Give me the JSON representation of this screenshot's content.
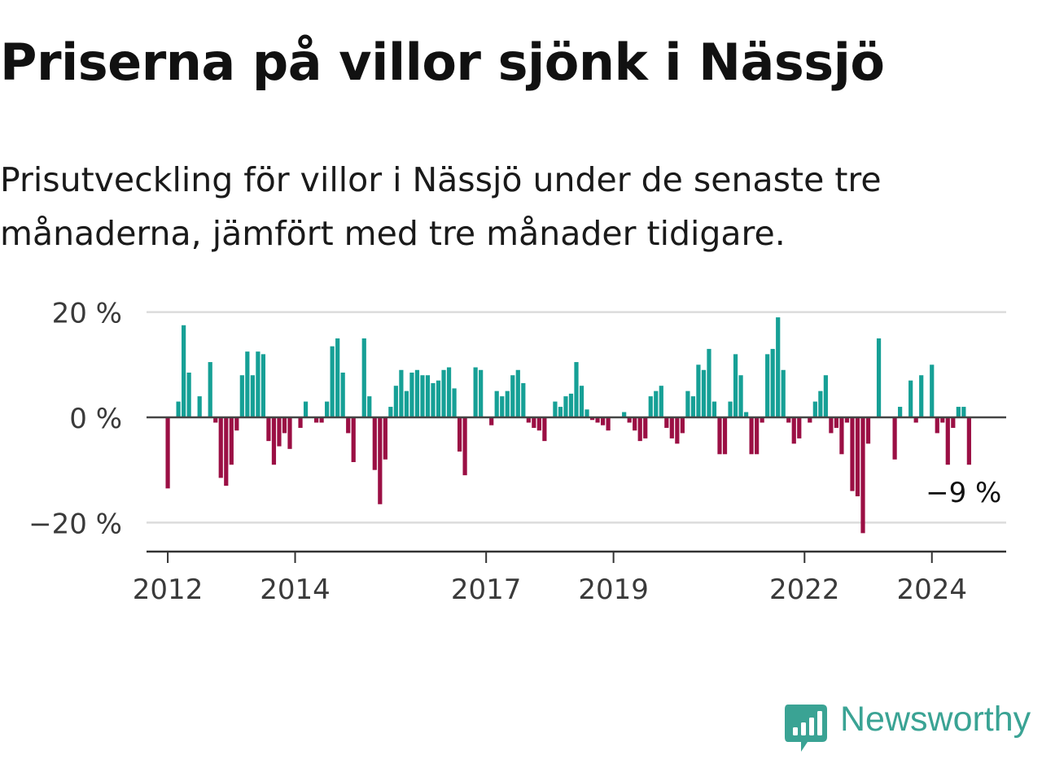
{
  "header": {
    "title": "Priserna på villor sjönk i Nässjö",
    "subtitle": "Prisutveckling för villor i Nässjö under de senaste tre månaderna, jämfört med tre månader tidigare."
  },
  "brand": {
    "name": "Newsworthy",
    "icon": "newsworthy-logo-icon",
    "color": "#3aa394"
  },
  "colors": {
    "positive": "#16a096",
    "negative": "#9b0f44"
  },
  "chart_data": {
    "type": "bar",
    "title": "Priserna på villor sjönk i Nässjö",
    "subtitle": "Prisutveckling för villor i Nässjö under de senaste tre månaderna, jämfört med tre månader tidigare.",
    "xlabel": "",
    "ylabel": "",
    "ylim": [
      -25,
      20
    ],
    "xlim": [
      "2011-09",
      "2025-03"
    ],
    "y_ticks": [
      20,
      0,
      -20
    ],
    "y_tick_labels": [
      "20 %",
      "0 %",
      "−20 %"
    ],
    "x_ticks": [
      "2012",
      "2014",
      "2017",
      "2019",
      "2022",
      "2024"
    ],
    "grid": true,
    "legend": "none",
    "annotation": {
      "text": "−9 %",
      "target": "last"
    },
    "start_month": "2012-01",
    "values": [
      -13.5,
      0,
      3,
      17.5,
      8.5,
      0,
      4,
      0,
      10.5,
      -1,
      -11.5,
      -13,
      -9,
      -2.5,
      8,
      12.5,
      8,
      12.5,
      12,
      -4.5,
      -9,
      -5.5,
      -3,
      -6,
      0,
      -2,
      3,
      0,
      -1,
      -1,
      3,
      13.5,
      15,
      8.5,
      -3,
      -8.5,
      0,
      15,
      4,
      -10,
      -16.5,
      -8,
      2,
      6,
      9,
      5,
      8.5,
      9,
      8,
      8,
      6.5,
      7,
      9,
      9.5,
      5.5,
      -6.5,
      -11,
      0,
      9.5,
      9,
      0,
      -1.5,
      5,
      4,
      5,
      8,
      9,
      6.5,
      -1,
      -2,
      -2.5,
      -4.5,
      0,
      3,
      2,
      4,
      4.5,
      10.5,
      6,
      1.5,
      -0.5,
      -1,
      -1.5,
      -2.5,
      0,
      0,
      1,
      -1,
      -2.5,
      -4.5,
      -4,
      4,
      5,
      6,
      -2,
      -4,
      -5,
      -3,
      5,
      4,
      10,
      9,
      13,
      3,
      -7,
      -7,
      3,
      12,
      8,
      1,
      -7,
      -7,
      -1,
      12,
      13,
      19,
      9,
      -1,
      -5,
      -4,
      0,
      -1,
      3,
      5,
      8,
      -3,
      -2,
      -7,
      -1,
      -14,
      -15,
      -22,
      -5,
      0,
      15,
      0,
      0,
      -8,
      2,
      0,
      7,
      -1,
      8,
      0,
      10,
      -3,
      -1,
      -9,
      -2,
      2,
      2,
      -9
    ]
  }
}
